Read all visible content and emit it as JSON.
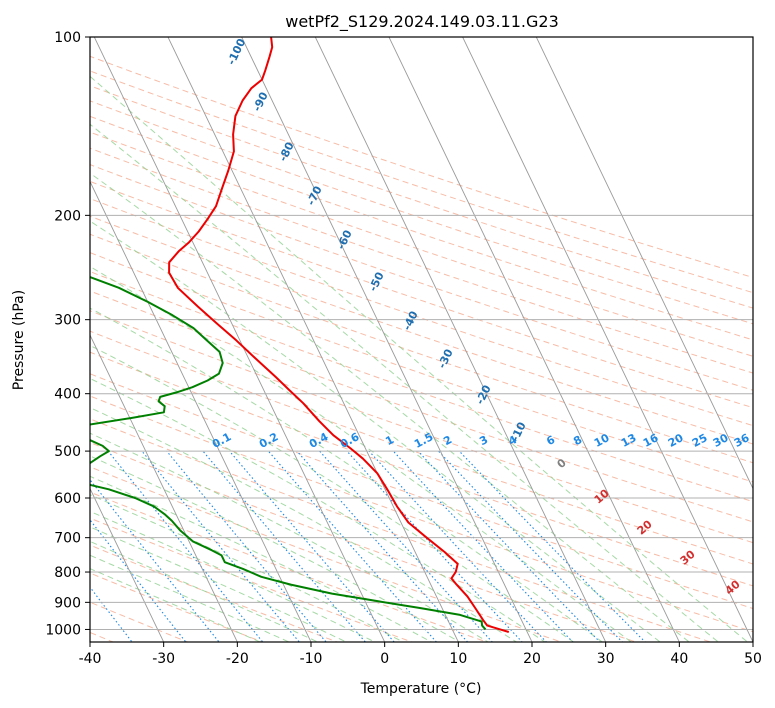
{
  "title": "wetPf2_S129.2024.149.03.11.G23",
  "colors": {
    "temperature": "#ee0000",
    "dewpoint": "#008000",
    "grid": "#b0b0b0",
    "isotherm": "#9a9a9a",
    "dry_adiabat": "#f4a58a",
    "moist_adiabat": "#8fcf8f",
    "mixing_ratio": "#1e88e5",
    "isotherm_label": "#1f6fb0",
    "moist_label": "#d32f2f",
    "border": "#000000"
  },
  "chart_data": {
    "type": "skew-t",
    "title": "wetPf2_S129.2024.149.03.11.G23",
    "xlabel": "Temperature (°C)",
    "ylabel": "Pressure (hPa)",
    "xlim": [
      -40,
      50
    ],
    "ylim": [
      1050,
      100
    ],
    "y_scale": "log",
    "x_ticks": [
      -40,
      -30,
      -20,
      -10,
      0,
      10,
      20,
      30,
      40,
      50
    ],
    "y_ticks": [
      1000,
      900,
      800,
      700,
      600,
      500,
      400,
      300,
      200,
      100
    ],
    "grid": true,
    "series": [
      {
        "role": "temperature",
        "points": [
          [
            17.5,
            1010
          ],
          [
            16.5,
            1000
          ],
          [
            15.0,
            985
          ],
          [
            14.8,
            965
          ],
          [
            14.5,
            920
          ],
          [
            14.2,
            880
          ],
          [
            13.5,
            840
          ],
          [
            13.2,
            820
          ],
          [
            14.2,
            800
          ],
          [
            15.0,
            775
          ],
          [
            14.0,
            740
          ],
          [
            12.5,
            700
          ],
          [
            11.0,
            660
          ],
          [
            10.5,
            620
          ],
          [
            10.3,
            580
          ],
          [
            10.0,
            545
          ],
          [
            9.0,
            515
          ],
          [
            8.0,
            495
          ],
          [
            6.5,
            470
          ],
          [
            5.5,
            445
          ],
          [
            4.5,
            415
          ],
          [
            3.5,
            395
          ],
          [
            2.5,
            375
          ],
          [
            1.0,
            350
          ],
          [
            -0.5,
            325
          ],
          [
            -2.0,
            305
          ],
          [
            -3.5,
            285
          ],
          [
            -5.0,
            265
          ],
          [
            -5.2,
            250
          ],
          [
            -4.5,
            240
          ],
          [
            -2.5,
            230
          ],
          [
            -0.5,
            222
          ],
          [
            1.5,
            213
          ],
          [
            3.5,
            203
          ],
          [
            5.5,
            193
          ],
          [
            7.5,
            180
          ],
          [
            9.5,
            168
          ],
          [
            11.5,
            156
          ],
          [
            12.5,
            146
          ],
          [
            14.0,
            136
          ],
          [
            16.0,
            128
          ],
          [
            18.0,
            122
          ],
          [
            20.0,
            118
          ],
          [
            21.0,
            114
          ],
          [
            22.5,
            108
          ],
          [
            23.5,
            104
          ],
          [
            24.0,
            100
          ]
        ]
      },
      {
        "role": "dewpoint",
        "points": [
          [
            14.5,
            1000
          ],
          [
            14.3,
            985
          ],
          [
            14.5,
            970
          ],
          [
            12.0,
            945
          ],
          [
            7.0,
            920
          ],
          [
            1.5,
            895
          ],
          [
            -4.0,
            870
          ],
          [
            -9.0,
            840
          ],
          [
            -12.5,
            815
          ],
          [
            -14.5,
            790
          ],
          [
            -16.5,
            770
          ],
          [
            -16.5,
            750
          ],
          [
            -17.5,
            735
          ],
          [
            -19.5,
            710
          ],
          [
            -20.5,
            680
          ],
          [
            -21.0,
            655
          ],
          [
            -21.5,
            640
          ],
          [
            -22.5,
            620
          ],
          [
            -24.5,
            600
          ],
          [
            -27.5,
            580
          ],
          [
            -31.0,
            565
          ],
          [
            -34.0,
            555
          ],
          [
            -36.5,
            550
          ],
          [
            -34.0,
            545
          ],
          [
            -31.0,
            535
          ],
          [
            -28.5,
            525
          ],
          [
            -26.5,
            510
          ],
          [
            -25.0,
            500
          ],
          [
            -25.5,
            490
          ],
          [
            -27.0,
            478
          ],
          [
            -32.5,
            472
          ],
          [
            -36.5,
            470
          ],
          [
            -35.0,
            466
          ],
          [
            -32.0,
            460
          ],
          [
            -28.0,
            455
          ],
          [
            -20.0,
            440
          ],
          [
            -15.0,
            430
          ],
          [
            -14.5,
            420
          ],
          [
            -15.0,
            412
          ],
          [
            -14.5,
            405
          ],
          [
            -12.0,
            398
          ],
          [
            -9.5,
            390
          ],
          [
            -7.0,
            380
          ],
          [
            -5.0,
            370
          ],
          [
            -3.8,
            355
          ],
          [
            -3.5,
            340
          ],
          [
            -4.5,
            325
          ],
          [
            -5.5,
            310
          ],
          [
            -7.5,
            295
          ],
          [
            -10.0,
            280
          ],
          [
            -13.0,
            265
          ],
          [
            -17.5,
            250
          ],
          [
            -24.0,
            238
          ],
          [
            -31.0,
            230
          ],
          [
            -34.5,
            225
          ],
          [
            -29.0,
            220
          ],
          [
            -23.0,
            215
          ],
          [
            -20.5,
            210
          ],
          [
            -19.5,
            200
          ],
          [
            -20.0,
            192
          ],
          [
            -21.5,
            183
          ],
          [
            -22.5,
            176
          ],
          [
            -20.5,
            170
          ],
          [
            -17.0,
            162
          ],
          [
            -13.5,
            155
          ],
          [
            -12.0,
            148
          ],
          [
            -11.5,
            140
          ],
          [
            -13.5,
            134
          ],
          [
            -16.5,
            130
          ],
          [
            -17.5,
            126
          ],
          [
            -15.5,
            120
          ],
          [
            -12.0,
            115
          ],
          [
            -9.5,
            110
          ],
          [
            -8.0,
            105
          ],
          [
            -7.5,
            100
          ]
        ]
      }
    ],
    "isotherm_labels": [
      "-100",
      "-90",
      "-80",
      "-70",
      "-60",
      "-50",
      "-40",
      "-30",
      "-20",
      "-10"
    ],
    "mixing_ratio_labels": [
      "0.1",
      "0.2",
      "0.4",
      "0.6",
      "1",
      "1.5",
      "2",
      "3",
      "4",
      "6",
      "8",
      "10",
      "13",
      "16",
      "20",
      "25",
      "30",
      "36"
    ],
    "moist_adiabat_labels": [
      "0",
      "10",
      "20",
      "30",
      "40"
    ]
  }
}
